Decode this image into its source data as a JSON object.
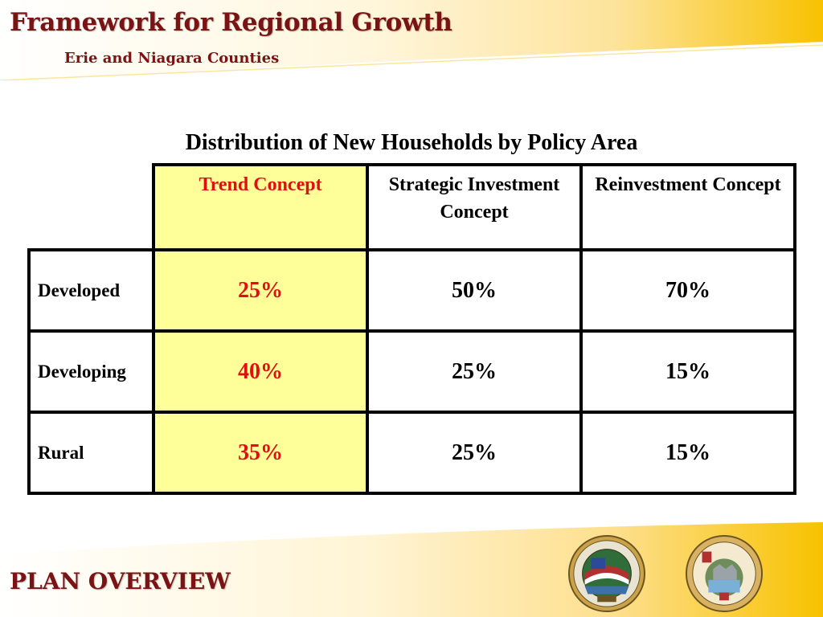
{
  "header": {
    "title": "Framework for Regional Growth",
    "subtitle": "Erie and Niagara Counties"
  },
  "table": {
    "title": "Distribution of New Households by Policy Area",
    "columns": [
      "Trend Concept",
      "Strategic Investment Concept",
      "Reinvestment Concept"
    ],
    "rows": [
      {
        "label": "Developed",
        "values": [
          "25%",
          "50%",
          "70%"
        ]
      },
      {
        "label": "Developing",
        "values": [
          "40%",
          "25%",
          "15%"
        ]
      },
      {
        "label": "Rural",
        "values": [
          "35%",
          "25%",
          "15%"
        ]
      }
    ]
  },
  "footer": {
    "label": "PLAN OVERVIEW",
    "seals": [
      "erie-county-seal",
      "niagara-county-seal"
    ]
  },
  "colors": {
    "title": "#7a1313",
    "highlight_column_bg": "#ffff99",
    "highlight_text": "#e01010",
    "banner_gold": "#f8c200"
  }
}
